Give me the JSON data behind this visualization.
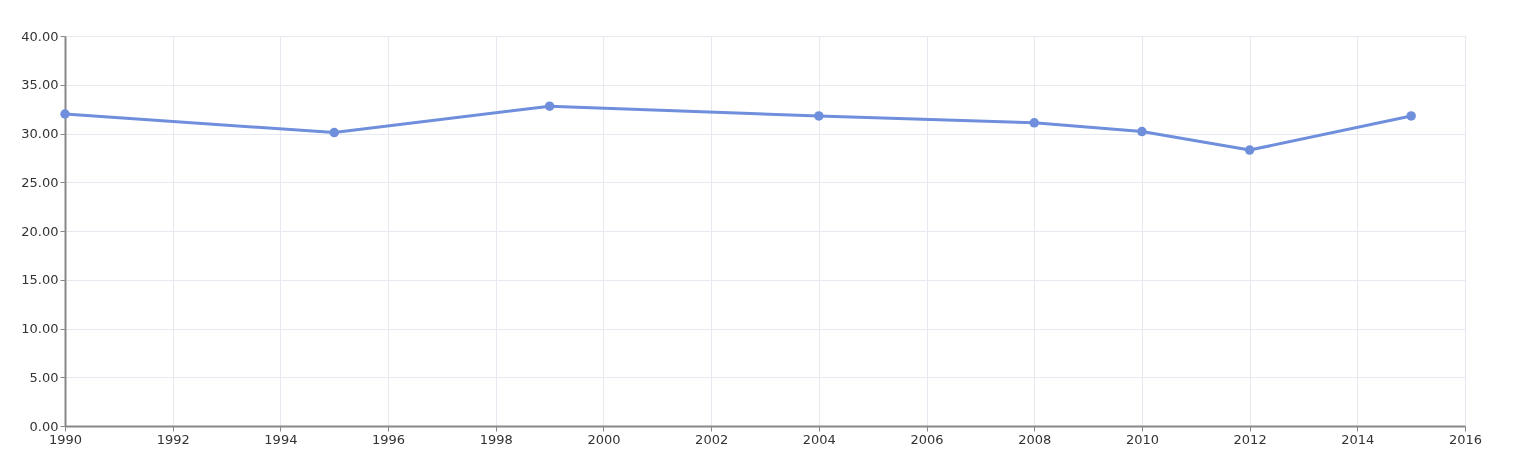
{
  "chart_data": {
    "type": "line",
    "x": [
      1990,
      1995,
      1999,
      2004,
      2008,
      2010,
      2012,
      2015
    ],
    "series": [
      {
        "color": "#6f8fdc",
        "values": [
          32.0,
          30.1,
          32.8,
          31.8,
          31.1,
          30.2,
          28.3,
          31.8
        ]
      }
    ],
    "xlim": [
      1990,
      2016
    ],
    "xticks": [
      1990,
      1992,
      1994,
      1996,
      1998,
      2000,
      2002,
      2004,
      2006,
      2008,
      2010,
      2012,
      2014,
      2016
    ],
    "ylim": [
      0,
      40
    ],
    "yticks": [
      {
        "value": 0,
        "label": "0.00"
      },
      {
        "value": 5,
        "label": "5.00"
      },
      {
        "value": 10,
        "label": "10.00"
      },
      {
        "value": 15,
        "label": "15.00"
      },
      {
        "value": 20,
        "label": "20.00"
      },
      {
        "value": 25,
        "label": "25.00"
      },
      {
        "value": 30,
        "label": "30.00"
      },
      {
        "value": 35,
        "label": "35.00"
      },
      {
        "value": 40,
        "label": "40.00"
      }
    ],
    "grid": true,
    "marker": "circle",
    "line_style": "solid"
  }
}
